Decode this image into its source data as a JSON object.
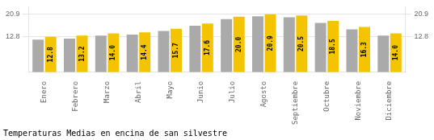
{
  "chart_data": {
    "type": "bar",
    "title": "Temperaturas Medias en encina de san silvestre",
    "categories": [
      "Enero",
      "Febrero",
      "Marzo",
      "Abril",
      "Mayo",
      "Junio",
      "Julio",
      "Agosto",
      "Septiembre",
      "Octubre",
      "Noviembre",
      "Diciembre"
    ],
    "series": [
      {
        "color": "#AAAAAA",
        "values": [
          11.8,
          12.1,
          13.2,
          13.6,
          14.9,
          16.8,
          19.2,
          20.2,
          19.8,
          17.8,
          15.5,
          13.2
        ]
      },
      {
        "color": "#F5C400",
        "values": [
          12.8,
          13.2,
          14.0,
          14.4,
          15.7,
          17.6,
          20.0,
          20.9,
          20.5,
          18.5,
          16.3,
          14.0
        ],
        "value_labels": [
          "12.8",
          "13.2",
          "14.0",
          "14.4",
          "15.7",
          "17.6",
          "20.0",
          "20.9",
          "20.5",
          "18.5",
          "16.3",
          "14.0"
        ],
        "data_labels": true
      }
    ],
    "ylim": [
      0,
      23.617
    ],
    "yticks": [
      12.8,
      20.9
    ],
    "y2lim": [
      0,
      23.617
    ],
    "y2ticks": [
      12.8,
      20.9
    ],
    "grid": true
  }
}
